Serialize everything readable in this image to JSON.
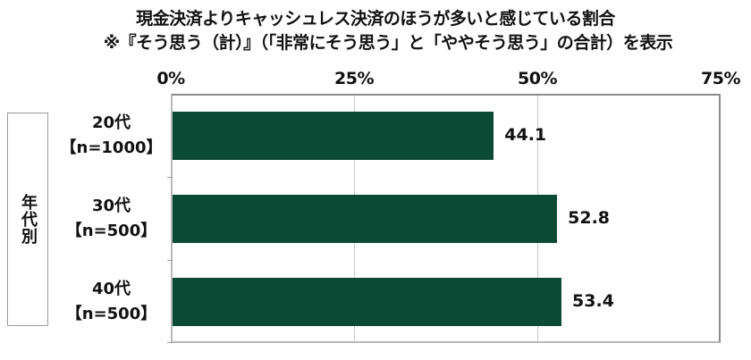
{
  "chart_data": {
    "type": "bar",
    "orientation": "horizontal",
    "title": "現金決済よりキャッシュレス決済のほうが多いと感じている割合",
    "subtitle": "※『そう思う（計）』（「非常にそう思う」と「ややそう思う」の合計）を表示",
    "group_label": "年代別",
    "categories": [
      "20代【n=1000】",
      "30代【n=500】",
      "40代【n=500】"
    ],
    "category_lines": [
      [
        "20代",
        "【n=1000】"
      ],
      [
        "30代",
        "【n=500】"
      ],
      [
        "40代",
        "【n=500】"
      ]
    ],
    "values": [
      44.1,
      52.8,
      53.4
    ],
    "value_labels": [
      "44.1",
      "52.8",
      "53.4"
    ],
    "xlabel": "",
    "ylabel": "年代別",
    "xlim": [
      0,
      75
    ],
    "x_ticks": [
      "0%",
      "25%",
      "50%",
      "75%"
    ],
    "x_tick_values": [
      0,
      25,
      50,
      75
    ],
    "grid": true,
    "legend": null,
    "bar_color": "#0b4a35"
  }
}
